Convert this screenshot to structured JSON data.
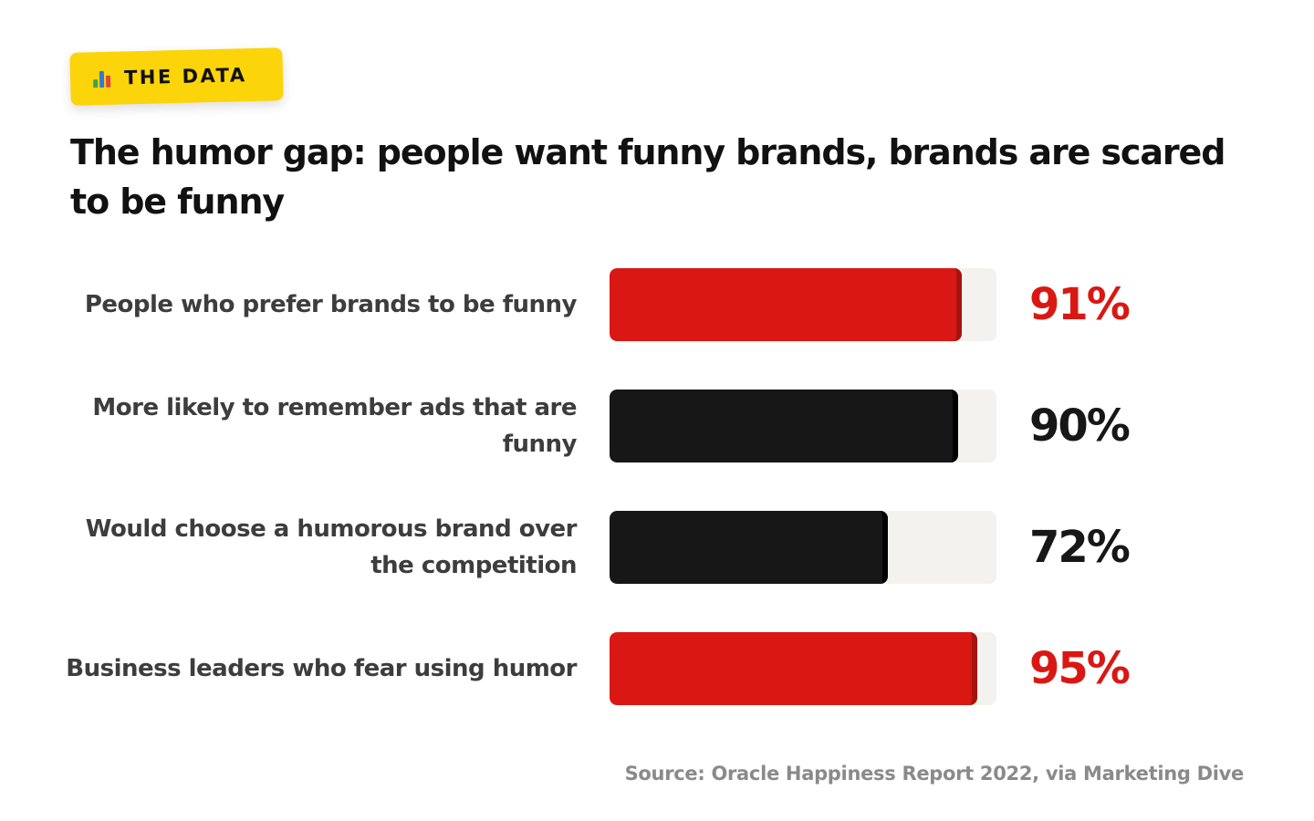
{
  "badge": {
    "label": "THE DATA",
    "icon": "bar-chart-icon",
    "color": "#FCD40A"
  },
  "title": "The humor gap: people want funny brands, brands are scared to be funny",
  "chart_data": {
    "type": "bar",
    "orientation": "horizontal",
    "title": "The humor gap: people want funny brands, brands are scared to be funny",
    "categories": [
      "People who prefer brands to be funny",
      "More likely to remember ads that are funny",
      "Would choose a humorous brand over the competition",
      "Business leaders who fear using humor"
    ],
    "values": [
      91,
      90,
      72,
      95
    ],
    "value_labels": [
      "91%",
      "90%",
      "72%",
      "95%"
    ],
    "bar_colors": [
      "#D91813",
      "#171717",
      "#171717",
      "#D91813"
    ],
    "value_colors": [
      "#D91813",
      "#171717",
      "#171717",
      "#D91813"
    ],
    "track_color": "#F3F2EE",
    "xlim": [
      0,
      100
    ],
    "unit": "%",
    "grid": false,
    "legend": "none"
  },
  "source": "Source: Oracle Happiness Report 2022, via Marketing Dive"
}
